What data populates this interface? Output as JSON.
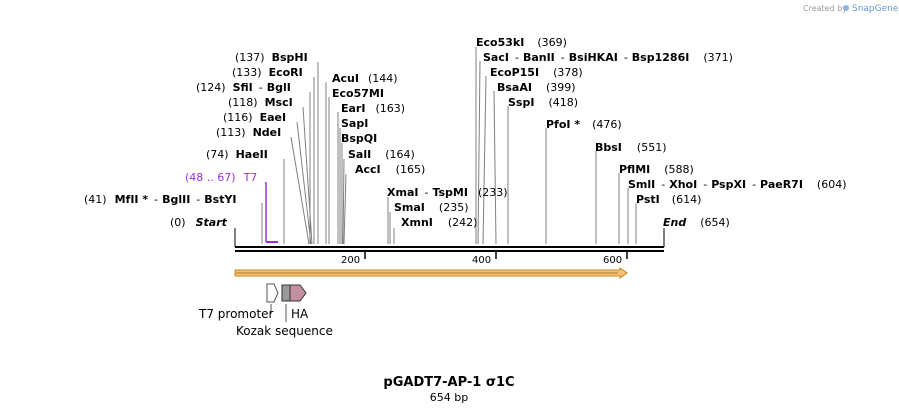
{
  "credit": {
    "text": "Created by",
    "brand": "SnapGene"
  },
  "title": "pGADT7-AP-1 σ1C",
  "length_label": "654 bp",
  "colors": {
    "primer": "#9b30d9",
    "orf_fill": "#f4c27a",
    "orf_stroke": "#c88a1c",
    "ha": "#c58fa2",
    "kozak": "#9a9a9a",
    "leader": "#808080",
    "backbone": "#000000"
  },
  "ticks": [
    "200",
    "400",
    "600"
  ],
  "start": {
    "pos": "(0)",
    "name": "Start"
  },
  "end": {
    "name": "End",
    "pos": "(654)"
  },
  "primer": {
    "range": "(48 .. 67)",
    "name": "T7"
  },
  "sites": [
    {
      "pos": "(137)",
      "names": [
        "BspHI"
      ]
    },
    {
      "pos": "(133)",
      "names": [
        "EcoRI"
      ]
    },
    {
      "pos": "(124)",
      "names": [
        "SfiI",
        "BglI"
      ]
    },
    {
      "pos": "(118)",
      "names": [
        "MscI"
      ]
    },
    {
      "pos": "(116)",
      "names": [
        "EaeI"
      ]
    },
    {
      "pos": "(113)",
      "names": [
        "NdeI"
      ]
    },
    {
      "pos": "(74)",
      "names": [
        "HaeII"
      ]
    },
    {
      "pos": "(41)",
      "names": [
        "MfII *",
        "BglII",
        "BstYI"
      ]
    },
    {
      "pos": "(144)",
      "names": [
        "AcuI"
      ]
    },
    {
      "pos": "",
      "names": [
        "Eco57MI"
      ]
    },
    {
      "pos": "(163)",
      "names": [
        "EarI"
      ]
    },
    {
      "pos": "",
      "names": [
        "SapI"
      ]
    },
    {
      "pos": "",
      "names": [
        "BspQI"
      ]
    },
    {
      "pos": "(164)",
      "names": [
        "SalI"
      ]
    },
    {
      "pos": "(165)",
      "names": [
        "AccI"
      ]
    },
    {
      "pos": "(233)",
      "names": [
        "XmaI",
        "TspMI"
      ]
    },
    {
      "pos": "(235)",
      "names": [
        "SmaI"
      ]
    },
    {
      "pos": "(242)",
      "names": [
        "XmnI"
      ]
    },
    {
      "pos": "(369)",
      "names": [
        "Eco53kI"
      ]
    },
    {
      "pos": "(371)",
      "names": [
        "SacI",
        "BanII",
        "BsiHKAI",
        "Bsp1286I"
      ]
    },
    {
      "pos": "(378)",
      "names": [
        "EcoP15I"
      ]
    },
    {
      "pos": "(399)",
      "names": [
        "BsaAI"
      ]
    },
    {
      "pos": "(418)",
      "names": [
        "SspI"
      ]
    },
    {
      "pos": "(476)",
      "names": [
        "PfoI *"
      ]
    },
    {
      "pos": "(551)",
      "names": [
        "BbsI"
      ]
    },
    {
      "pos": "(588)",
      "names": [
        "PflMI"
      ]
    },
    {
      "pos": "(604)",
      "names": [
        "SmlI",
        "XhoI",
        "PspXI",
        "PaeR7I"
      ]
    },
    {
      "pos": "(614)",
      "names": [
        "PstI"
      ]
    }
  ],
  "features": {
    "t7_promoter": "T7 promoter",
    "ha": "HA",
    "kozak": "Kozak sequence"
  }
}
